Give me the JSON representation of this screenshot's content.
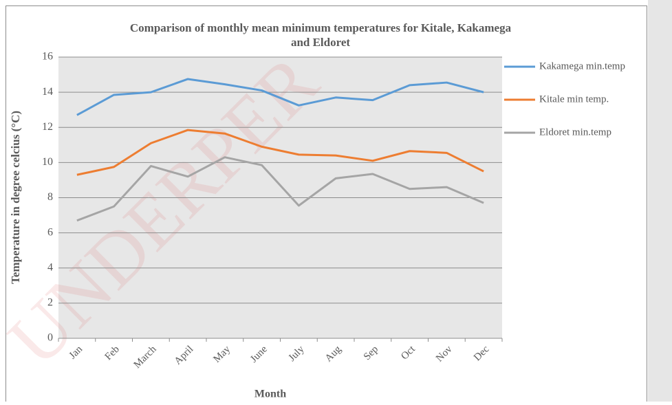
{
  "chart_data": {
    "type": "line",
    "title": [
      "Comparison of monthly mean minimum temperatures for Kitale, Kakamega",
      "and Eldoret"
    ],
    "x_label": "Month",
    "y_label": "Temperature in degree celcius (°C)",
    "watermark": "UNDERPER",
    "categories": [
      "Jan",
      "Feb",
      "March",
      "April",
      "May",
      "June",
      "July",
      "Aug",
      "Sep",
      "Oct",
      "Nov",
      "Dec"
    ],
    "series": [
      {
        "name": "Kakamega min.temp",
        "color": "#5b9bd5",
        "values": [
          12.7,
          13.85,
          14.0,
          14.75,
          14.45,
          14.1,
          13.25,
          13.7,
          13.55,
          14.4,
          14.55,
          14.0
        ]
      },
      {
        "name": "Kitale min temp.",
        "color": "#ed7d31",
        "values": [
          9.3,
          9.75,
          11.1,
          11.85,
          11.65,
          10.9,
          10.45,
          10.4,
          10.1,
          10.65,
          10.55,
          9.5
        ]
      },
      {
        "name": "Eldoret min.temp",
        "color": "#a5a5a5",
        "values": [
          6.7,
          7.5,
          9.8,
          9.2,
          10.3,
          9.85,
          7.55,
          9.1,
          9.35,
          8.5,
          8.6,
          7.7
        ]
      }
    ],
    "ylim": [
      0,
      16
    ],
    "yticks": [
      0,
      2,
      4,
      6,
      8,
      10,
      12,
      14,
      16
    ],
    "grid": true,
    "legend": "right"
  }
}
